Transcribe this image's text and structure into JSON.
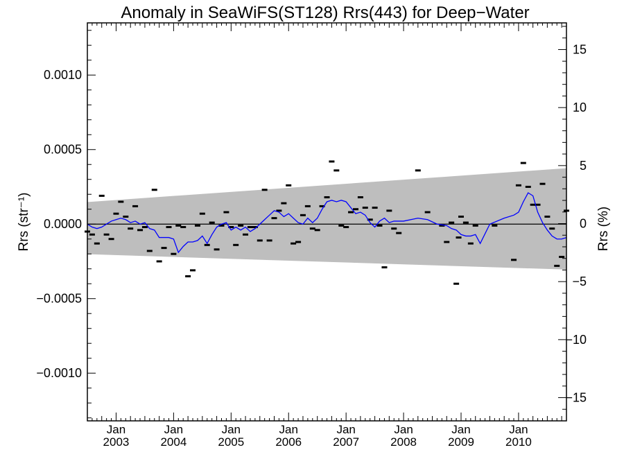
{
  "chart_data": {
    "type": "scatter",
    "title": "Anomaly in SeaWiFS(ST128) Rrs(443) for Deep−Water",
    "ylabel_left": "Rrs (str⁻¹)",
    "ylabel_right": "Rrs (%)",
    "xlim": [
      2002.5,
      2010.833
    ],
    "ylim_left": [
      -0.00132,
      0.00135
    ],
    "ylim_right": [
      -17,
      17.3
    ],
    "grid": false,
    "x_ticks": [
      {
        "value": 2003.0,
        "top": "Jan",
        "bottom": "2003"
      },
      {
        "value": 2004.0,
        "top": "Jan",
        "bottom": "2004"
      },
      {
        "value": 2005.0,
        "top": "Jan",
        "bottom": "2005"
      },
      {
        "value": 2006.0,
        "top": "Jan",
        "bottom": "2006"
      },
      {
        "value": 2007.0,
        "top": "Jan",
        "bottom": "2007"
      },
      {
        "value": 2008.0,
        "top": "Jan",
        "bottom": "2008"
      },
      {
        "value": 2009.0,
        "top": "Jan",
        "bottom": "2009"
      },
      {
        "value": 2010.0,
        "top": "Jan",
        "bottom": "2010"
      }
    ],
    "y_ticks_left": [
      {
        "value": 0.001,
        "label": "0.0010"
      },
      {
        "value": 0.0005,
        "label": "0.0005"
      },
      {
        "value": 0.0,
        "label": "0.0000"
      },
      {
        "value": -0.0005,
        "label": "−0.0005"
      },
      {
        "value": -0.001,
        "label": "−0.0010"
      }
    ],
    "y_ticks_right": [
      {
        "value": 15,
        "label": "15"
      },
      {
        "value": 10,
        "label": "10"
      },
      {
        "value": 5,
        "label": "5"
      },
      {
        "value": 0,
        "label": "0"
      },
      {
        "value": -5,
        "label": "−5"
      },
      {
        "value": -10,
        "label": "−10"
      },
      {
        "value": -15,
        "label": "−15"
      }
    ],
    "uncertainty_band": {
      "x": [
        2002.5,
        2010.833
      ],
      "upper": [
        0.000148,
        0.000375
      ],
      "lower": [
        -0.000202,
        -0.000305
      ],
      "color": "#bebebe"
    },
    "monthly_points": {
      "color": "#000000",
      "x": [
        2002.5,
        2002.583,
        2002.667,
        2002.75,
        2002.833,
        2002.917,
        2003.0,
        2003.083,
        2003.167,
        2003.25,
        2003.333,
        2003.417,
        2003.5,
        2003.583,
        2003.667,
        2003.75,
        2003.833,
        2003.917,
        2004.0,
        2004.083,
        2004.167,
        2004.25,
        2004.333,
        2004.417,
        2004.5,
        2004.583,
        2004.667,
        2004.75,
        2004.833,
        2004.917,
        2005.0,
        2005.083,
        2005.167,
        2005.25,
        2005.333,
        2005.417,
        2005.5,
        2005.583,
        2005.667,
        2005.75,
        2005.833,
        2005.917,
        2006.0,
        2006.083,
        2006.167,
        2006.25,
        2006.333,
        2006.417,
        2006.5,
        2006.583,
        2006.667,
        2006.75,
        2006.833,
        2006.917,
        2007.0,
        2007.083,
        2007.167,
        2007.25,
        2007.333,
        2007.417,
        2007.5,
        2007.583,
        2007.667,
        2007.75,
        2007.833,
        2007.917,
        2008.25,
        2008.417,
        2008.667,
        2008.75,
        2008.833,
        2008.917,
        2008.958,
        2009.0,
        2009.083,
        2009.167,
        2009.25,
        2009.583,
        2009.917,
        2010.0,
        2010.083,
        2010.167,
        2010.25,
        2010.333,
        2010.417,
        2010.5,
        2010.583,
        2010.667,
        2010.75,
        2010.833
      ],
      "y": [
        -5e-05,
        -7e-05,
        -0.00013,
        0.00019,
        -7e-05,
        -0.0001,
        7e-05,
        0.00015,
        5e-05,
        -3e-05,
        0.00012,
        -4e-05,
        -2e-05,
        -0.00018,
        0.00023,
        -0.00025,
        -0.00016,
        -2e-05,
        -0.0002,
        -1e-05,
        -2e-05,
        -0.00035,
        -0.00031,
        -1e-05,
        7e-05,
        -0.00014,
        1e-05,
        -0.00017,
        -1e-05,
        8e-05,
        -2e-05,
        -0.00014,
        -1e-05,
        -7e-05,
        -2e-05,
        -2e-05,
        -0.00011,
        0.00023,
        -0.00011,
        4e-05,
        9e-05,
        0.00014,
        0.00026,
        -0.00013,
        -0.00012,
        6e-05,
        0.00012,
        -3e-05,
        -4e-05,
        0.00012,
        0.00018,
        0.00042,
        0.00036,
        -1e-05,
        -2e-05,
        8e-05,
        0.0001,
        0.00018,
        0.00011,
        3e-05,
        0.00011,
        -1e-05,
        -0.00029,
        9e-05,
        -3e-05,
        -6e-05,
        0.00036,
        8e-05,
        -1e-05,
        -0.00012,
        1e-05,
        -0.0004,
        -9e-05,
        5e-05,
        1e-05,
        -0.00013,
        -1e-05,
        -1e-05,
        -0.00024,
        0.00026,
        0.00041,
        0.00025,
        0.00013,
        0.00013,
        0.00027,
        5e-05,
        -3e-05,
        -0.00028,
        -0.00022,
        9e-05
      ]
    },
    "running_mean": {
      "color": "#0000ff",
      "x": [
        2002.5,
        2002.583,
        2002.667,
        2002.75,
        2002.833,
        2002.917,
        2003.0,
        2003.083,
        2003.167,
        2003.25,
        2003.333,
        2003.417,
        2003.5,
        2003.583,
        2003.667,
        2003.75,
        2003.833,
        2003.917,
        2004.0,
        2004.083,
        2004.167,
        2004.25,
        2004.333,
        2004.417,
        2004.5,
        2004.583,
        2004.667,
        2004.75,
        2004.833,
        2004.917,
        2005.0,
        2005.083,
        2005.167,
        2005.25,
        2005.333,
        2005.417,
        2005.5,
        2005.583,
        2005.667,
        2005.75,
        2005.833,
        2005.917,
        2006.0,
        2006.083,
        2006.167,
        2006.25,
        2006.333,
        2006.417,
        2006.5,
        2006.583,
        2006.667,
        2006.75,
        2006.833,
        2006.917,
        2007.0,
        2007.083,
        2007.167,
        2007.25,
        2007.333,
        2007.417,
        2007.5,
        2007.583,
        2007.667,
        2007.75,
        2007.833,
        2007.917,
        2008.0,
        2008.25,
        2008.417,
        2008.583,
        2008.75,
        2008.833,
        2008.917,
        2009.0,
        2009.083,
        2009.167,
        2009.25,
        2009.333,
        2009.5,
        2009.75,
        2009.917,
        2010.0,
        2010.083,
        2010.167,
        2010.25,
        2010.333,
        2010.417,
        2010.5,
        2010.583,
        2010.667,
        2010.75,
        2010.833
      ],
      "y": [
        0.0,
        -2e-05,
        -3e-05,
        -2e-05,
        0.0,
        2e-05,
        3e-05,
        4e-05,
        3e-05,
        1e-05,
        2e-05,
        0.0,
        1e-05,
        -3e-05,
        -4e-05,
        -9e-05,
        -9e-05,
        -9e-05,
        -0.0001,
        -0.00019,
        -0.00015,
        -0.00012,
        -0.00012,
        -0.00011,
        -8e-05,
        -0.00013,
        -7e-05,
        -2e-05,
        0.0,
        1e-05,
        -4e-05,
        -2e-05,
        -4e-05,
        -2e-05,
        -5e-05,
        -3e-05,
        0.0,
        3e-05,
        6e-05,
        9e-05,
        8e-05,
        5e-05,
        7e-05,
        4e-05,
        1e-05,
        0.0,
        4e-05,
        1e-05,
        4e-05,
        0.0001,
        0.00015,
        0.00016,
        0.00015,
        0.00016,
        0.00015,
        0.00011,
        7e-05,
        8e-05,
        6e-05,
        1e-05,
        -2e-05,
        2e-05,
        4e-05,
        1e-05,
        2e-05,
        2e-05,
        2e-05,
        4e-05,
        3e-05,
        0.0,
        -1e-05,
        -3e-05,
        -4e-05,
        -7e-05,
        -8e-05,
        -8e-05,
        -7e-05,
        -0.00013,
        0.0,
        4e-05,
        6e-05,
        8e-05,
        0.00015,
        0.00021,
        0.00019,
        8e-05,
        1e-05,
        -4e-05,
        -8e-05,
        -0.0001,
        -0.0001,
        -9e-05
      ]
    }
  }
}
